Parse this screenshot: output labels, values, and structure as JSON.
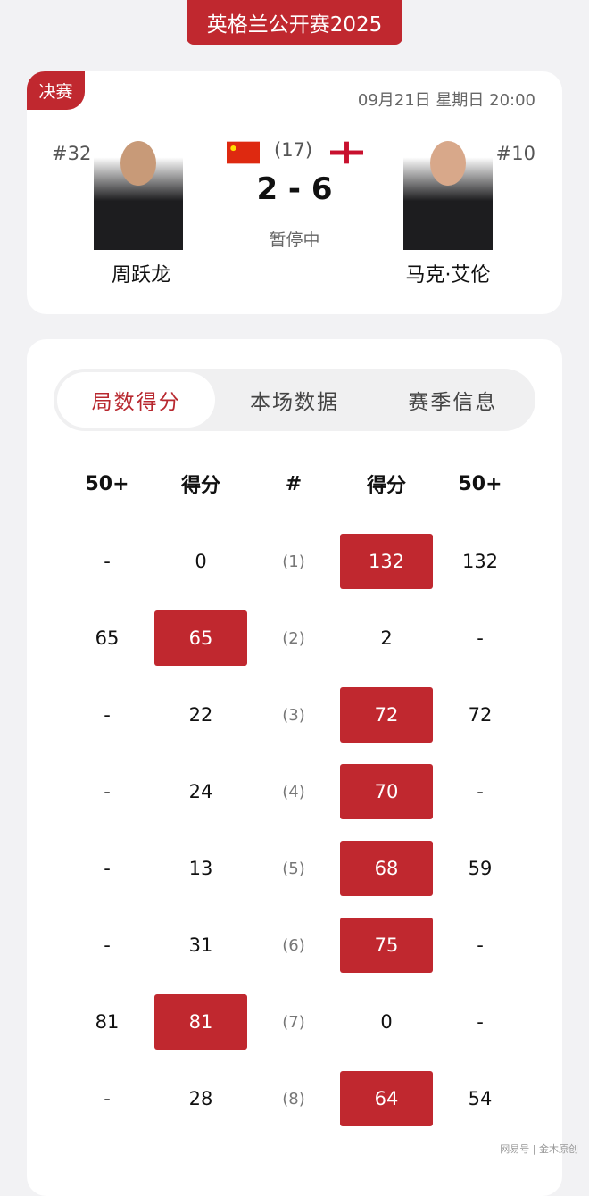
{
  "title": "英格兰公开赛2025",
  "match": {
    "round": "决赛",
    "datetime": "09月21日 星期日 20:00",
    "frames_best_of": "(17)",
    "score": "2 - 6",
    "status": "暂停中",
    "left": {
      "rank": "#32",
      "name": "周跃龙",
      "flag": "china-flag-icon"
    },
    "right": {
      "rank": "#10",
      "name": "马克·艾伦",
      "flag": "northern-ireland-flag-icon"
    }
  },
  "tabs": [
    {
      "label": "局数得分",
      "active": true
    },
    {
      "label": "本场数据",
      "active": false
    },
    {
      "label": "赛季信息",
      "active": false
    }
  ],
  "table": {
    "headers": [
      "50+",
      "得分",
      "#",
      "得分",
      "50+"
    ],
    "rows": [
      [
        "-",
        "0",
        "(1)",
        "132",
        "132",
        "right"
      ],
      [
        "65",
        "65",
        "(2)",
        "2",
        "-",
        "left"
      ],
      [
        "-",
        "22",
        "(3)",
        "72",
        "72",
        "right"
      ],
      [
        "-",
        "24",
        "(4)",
        "70",
        "-",
        "right"
      ],
      [
        "-",
        "13",
        "(5)",
        "68",
        "59",
        "right"
      ],
      [
        "-",
        "31",
        "(6)",
        "75",
        "-",
        "right"
      ],
      [
        "81",
        "81",
        "(7)",
        "0",
        "-",
        "left"
      ],
      [
        "-",
        "28",
        "(8)",
        "64",
        "54",
        "right"
      ]
    ]
  },
  "colors": {
    "accent": "#c0282f",
    "background": "#f2f2f4"
  },
  "watermark": "网易号 | 金木原创"
}
